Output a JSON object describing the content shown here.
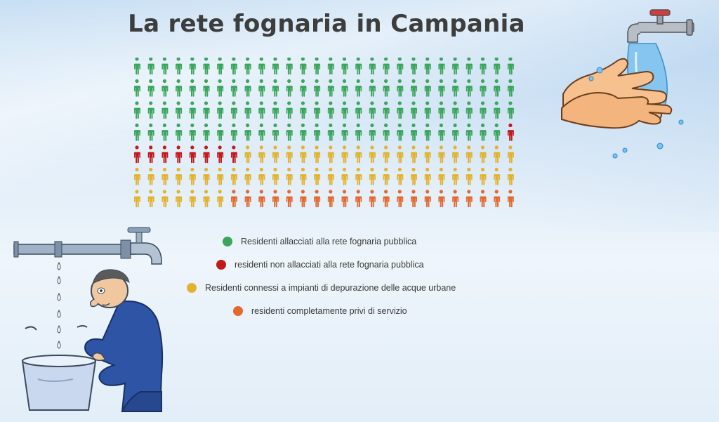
{
  "title": "La rete fognaria in Campania",
  "colors": {
    "connected": "#3aa65c",
    "not_connected": "#c21a1a",
    "treatment": "#e3b32f",
    "no_service": "#e4692d"
  },
  "chart_data": {
    "type": "pictogram",
    "title": "La rete fognaria in Campania",
    "grid": {
      "columns": 28,
      "rows": 7
    },
    "icon": "person",
    "total_icons": 196,
    "series": [
      {
        "name": "Residenti allacciati alla rete fognaria pubblica",
        "count": 111,
        "color": "#3aa65c"
      },
      {
        "name": "residenti non allacciati alla rete fognaria pubblica",
        "count": 9,
        "color": "#c21a1a"
      },
      {
        "name": "Residenti connessi a impianti di depurazione delle acque urbane",
        "count": 55,
        "color": "#e3b32f"
      },
      {
        "name": "residenti completamente privi di servizio",
        "count": 21,
        "color": "#e4692d"
      }
    ],
    "legend_position": "below"
  },
  "legend": [
    {
      "label": "Residenti allacciati alla rete fognaria pubblica",
      "color": "#3aa65c"
    },
    {
      "label": "residenti non allacciati alla rete fognaria pubblica",
      "color": "#c21a1a"
    },
    {
      "label": "Residenti connessi a impianti di depurazione delle acque urbane",
      "color": "#e3b32f"
    },
    {
      "label": "residenti completamente privi di servizio",
      "color": "#e4692d"
    }
  ],
  "illustrations": {
    "top_right": "hands-washing-under-tap-icon",
    "bottom_left": "man-collecting-water-drops-icon"
  }
}
